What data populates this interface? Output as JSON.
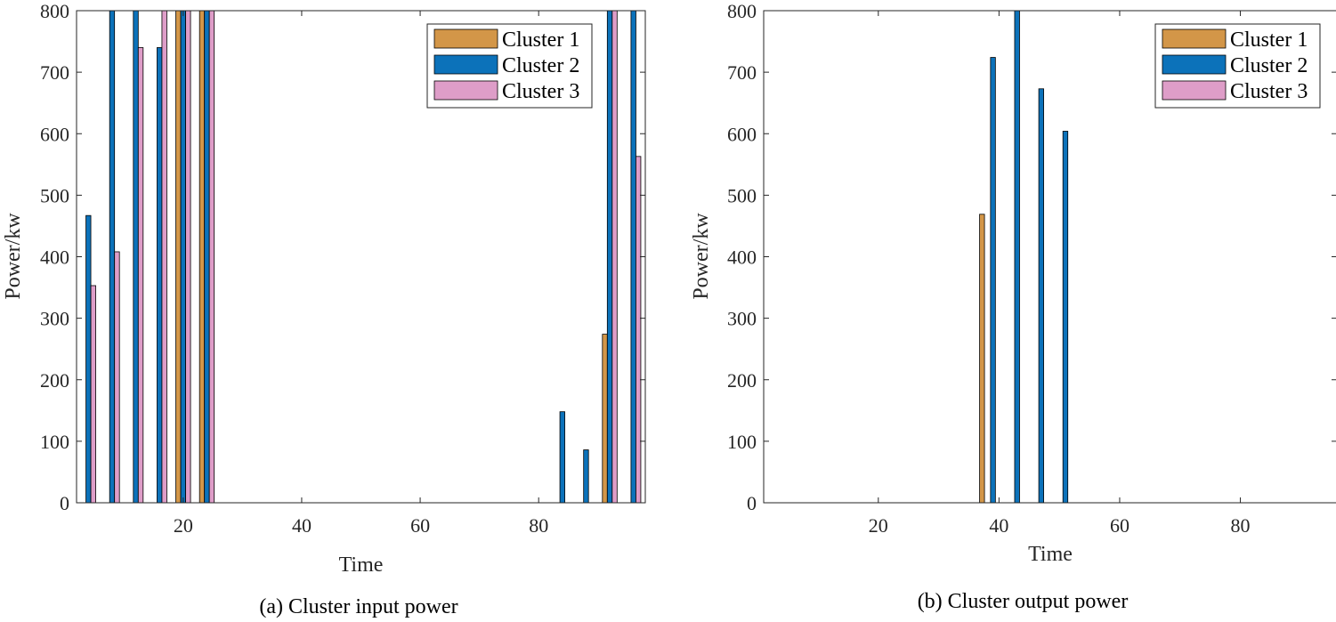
{
  "chart_data": [
    {
      "type": "bar",
      "panel": "a",
      "caption": "(a) Cluster input power",
      "xlabel": "Time",
      "ylabel": "Power/kw",
      "xlim": [
        2,
        98
      ],
      "ylim": [
        0,
        800
      ],
      "xticks": [
        20,
        40,
        60,
        80
      ],
      "yticks": [
        0,
        100,
        200,
        300,
        400,
        500,
        600,
        700,
        800
      ],
      "legend_position": "top-right",
      "series": [
        {
          "name": "Cluster 1",
          "color": "#D39648",
          "points": [
            {
              "x": 20,
              "y": 800
            },
            {
              "x": 24,
              "y": 800
            },
            {
              "x": 92,
              "y": 274
            }
          ]
        },
        {
          "name": "Cluster 2",
          "color": "#0C72BA",
          "points": [
            {
              "x": 4,
              "y": 467
            },
            {
              "x": 8,
              "y": 800
            },
            {
              "x": 12,
              "y": 800
            },
            {
              "x": 16,
              "y": 740
            },
            {
              "x": 20,
              "y": 800
            },
            {
              "x": 24,
              "y": 800
            },
            {
              "x": 84,
              "y": 148
            },
            {
              "x": 88,
              "y": 86
            },
            {
              "x": 92,
              "y": 800
            },
            {
              "x": 96,
              "y": 800
            }
          ]
        },
        {
          "name": "Cluster 3",
          "color": "#DE9DC8",
          "points": [
            {
              "x": 4,
              "y": 353
            },
            {
              "x": 8,
              "y": 408
            },
            {
              "x": 12,
              "y": 740
            },
            {
              "x": 16,
              "y": 800
            },
            {
              "x": 20,
              "y": 800
            },
            {
              "x": 24,
              "y": 800
            },
            {
              "x": 92,
              "y": 800
            },
            {
              "x": 96,
              "y": 563
            }
          ]
        }
      ]
    },
    {
      "type": "bar",
      "panel": "b",
      "caption": "(b) Cluster output power",
      "xlabel": "Time",
      "ylabel": "Power/kw",
      "xlim": [
        1,
        96
      ],
      "ylim": [
        0,
        800
      ],
      "xticks": [
        20,
        40,
        60,
        80
      ],
      "yticks": [
        0,
        100,
        200,
        300,
        400,
        500,
        600,
        700,
        800
      ],
      "legend_position": "top-right",
      "series": [
        {
          "name": "Cluster 1",
          "color": "#D39648",
          "points": [
            {
              "x": 38,
              "y": 469
            }
          ]
        },
        {
          "name": "Cluster 2",
          "color": "#0C72BA",
          "points": [
            {
              "x": 39,
              "y": 724
            },
            {
              "x": 43,
              "y": 800
            },
            {
              "x": 47,
              "y": 673
            },
            {
              "x": 51,
              "y": 604
            }
          ]
        },
        {
          "name": "Cluster 3",
          "color": "#DE9DC8",
          "points": []
        }
      ]
    }
  ]
}
